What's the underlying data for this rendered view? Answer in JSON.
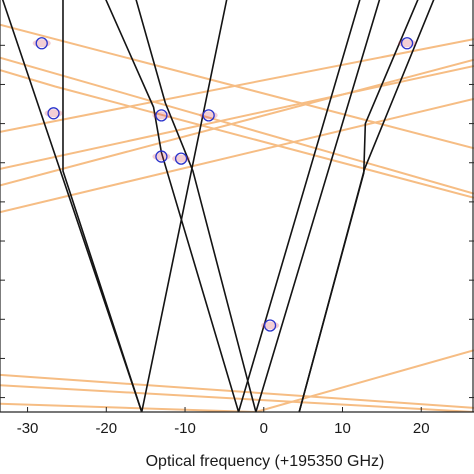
{
  "chart_data": {
    "type": "line",
    "title": "",
    "xlabel": "Optical frequency (+195350 GHz)",
    "ylabel": "",
    "xlim": [
      -33.5,
      26.7
    ],
    "ylim": [
      0,
      1
    ],
    "x_ticks": [
      -30,
      -20,
      -10,
      0,
      10,
      20
    ],
    "x_tick_labels": [
      "-30",
      "-20",
      "-10",
      "0",
      "10",
      "20"
    ],
    "y_ticks": [
      0.035,
      0.13,
      0.225,
      0.32,
      0.415,
      0.51,
      0.605,
      0.7,
      0.795,
      0.89
    ],
    "grid": false,
    "legend": "none",
    "colors": {
      "dark_mode": "#141414",
      "light_mode": "#f6bd84",
      "avoided_crossing": "#cf3b58",
      "marker": "#2a33cc"
    },
    "series": [
      {
        "color": "dark",
        "points": [
          [
            -33.5,
            1.02
          ],
          [
            -15.5,
            0.0
          ]
        ]
      },
      {
        "color": "dark",
        "points": [
          [
            -25.5,
            1.02
          ],
          [
            -25.5,
            0.585
          ],
          [
            -15.5,
            0.0
          ]
        ]
      },
      {
        "color": "dark",
        "points": [
          [
            -15.5,
            0.0
          ],
          [
            -4.5,
            1.02
          ]
        ]
      },
      {
        "color": "dark",
        "points": [
          [
            -20.5,
            1.02
          ],
          [
            -14.0,
            0.74
          ],
          [
            -13.0,
            0.63
          ],
          [
            -3.2,
            0.0
          ]
        ]
      },
      {
        "color": "dark",
        "points": [
          [
            -16.5,
            1.02
          ],
          [
            -12.5,
            0.75
          ],
          [
            -9.0,
            0.585
          ],
          [
            -1.0,
            0.0
          ]
        ]
      },
      {
        "color": "dark",
        "points": [
          [
            -3.2,
            0.0
          ],
          [
            12.5,
            1.02
          ]
        ]
      },
      {
        "color": "dark",
        "points": [
          [
            -1.0,
            0.0
          ],
          [
            15.0,
            1.02
          ]
        ]
      },
      {
        "color": "dark",
        "points": [
          [
            4.5,
            0.0
          ],
          [
            12.7,
            0.58
          ],
          [
            12.9,
            0.7
          ],
          [
            20.0,
            1.02
          ]
        ]
      },
      {
        "color": "dark",
        "points": [
          [
            4.5,
            0.0
          ],
          [
            12.8,
            0.59
          ],
          [
            22.0,
            1.02
          ]
        ]
      },
      {
        "color": "light",
        "points": [
          [
            -33.5,
            0.94
          ],
          [
            26.7,
            0.64
          ]
        ]
      },
      {
        "color": "light",
        "points": [
          [
            -33.5,
            0.86
          ],
          [
            26.7,
            0.53
          ]
        ]
      },
      {
        "color": "light",
        "points": [
          [
            -33.5,
            0.83
          ],
          [
            -26.5,
            0.79
          ],
          [
            26.7,
            0.52
          ]
        ]
      },
      {
        "color": "light",
        "points": [
          [
            -33.5,
            0.68
          ],
          [
            26.7,
            0.905
          ]
        ]
      },
      {
        "color": "light",
        "points": [
          [
            -33.5,
            0.59
          ],
          [
            26.7,
            0.84
          ]
        ]
      },
      {
        "color": "light",
        "points": [
          [
            -33.5,
            0.55
          ],
          [
            26.7,
            0.855
          ]
        ]
      },
      {
        "color": "light",
        "points": [
          [
            -33.5,
            0.485
          ],
          [
            26.7,
            0.76
          ]
        ]
      },
      {
        "color": "light",
        "points": [
          [
            -33.5,
            0.065
          ],
          [
            26.7,
            0.0
          ]
        ]
      },
      {
        "color": "light",
        "points": [
          [
            -33.5,
            0.02
          ],
          [
            -1.0,
            0.0
          ],
          [
            26.7,
            0.15
          ]
        ]
      },
      {
        "color": "light",
        "points": [
          [
            -33.5,
            0.09
          ],
          [
            26.7,
            0.01
          ]
        ]
      }
    ],
    "markers": [
      {
        "x": -28.2,
        "y": 0.895
      },
      {
        "x": -26.7,
        "y": 0.725
      },
      {
        "x": -13.0,
        "y": 0.72
      },
      {
        "x": -7.0,
        "y": 0.72
      },
      {
        "x": -13.0,
        "y": 0.62
      },
      {
        "x": -10.5,
        "y": 0.615
      },
      {
        "x": 0.8,
        "y": 0.21
      },
      {
        "x": 18.2,
        "y": 0.895
      }
    ]
  }
}
